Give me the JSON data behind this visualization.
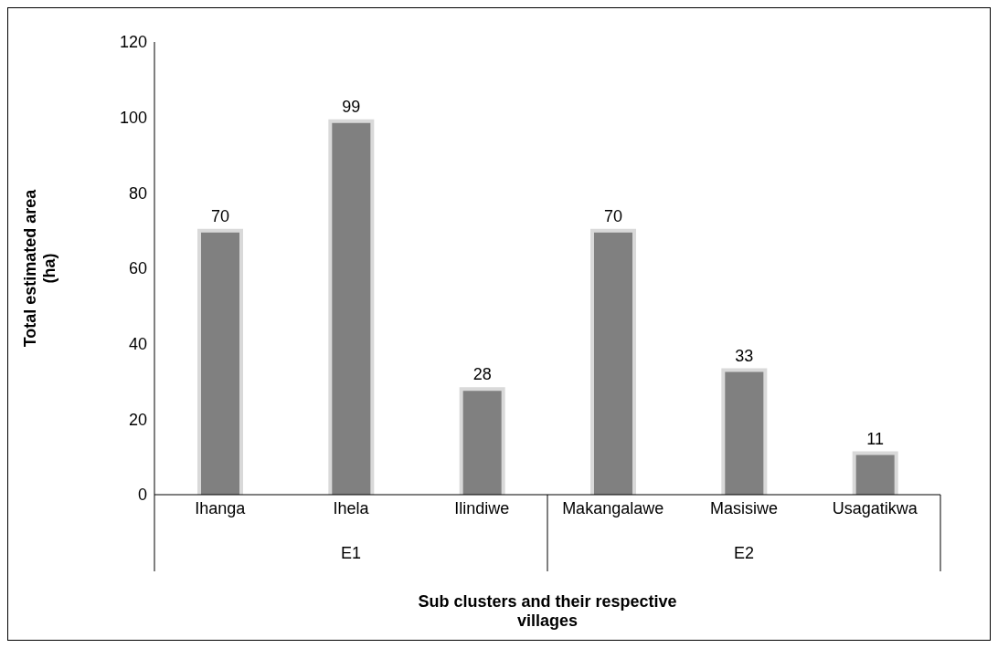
{
  "chart_data": {
    "type": "bar",
    "xlabel": "Sub clusters and their respective villages",
    "ylabel": "Total estimated area (ha)",
    "categories": [
      "Ihanga",
      "Ihela",
      "Ilindiwe",
      "Makangalawe",
      "Masisiwe",
      "Usagatikwa"
    ],
    "values": [
      70,
      99,
      28,
      70,
      33,
      11
    ],
    "color": "#808080",
    "ylim": [
      0,
      120
    ],
    "yticks": [
      0,
      20,
      40,
      60,
      80,
      100,
      120
    ],
    "grid": false,
    "legend": false,
    "data_labels": true,
    "annotations": [
      "E1",
      "E2"
    ]
  }
}
